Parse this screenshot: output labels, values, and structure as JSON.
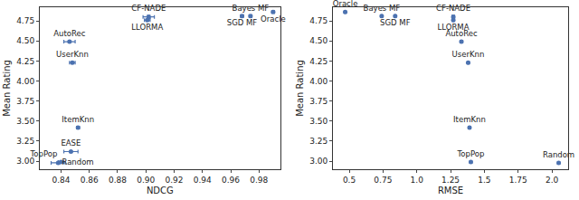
{
  "chart_data": [
    {
      "type": "scatter",
      "marker": "circle",
      "color": "#4c72b0",
      "grid": false,
      "x_label": "NDCG",
      "y_label": "Mean Rating",
      "labels": [
        "Random",
        "TopPop",
        "EASE",
        "ItemKnn",
        "UserKnn",
        "AutoRec",
        "CF-NADE",
        "LLORMA",
        "SGD MF",
        "Bayes MF",
        "Oracle"
      ],
      "x": [
        0.838,
        0.84,
        0.847,
        0.852,
        0.848,
        0.846,
        0.902,
        0.901,
        0.968,
        0.974,
        0.99
      ],
      "values": [
        2.98,
        2.99,
        3.12,
        3.42,
        4.23,
        4.49,
        4.8,
        4.76,
        4.81,
        4.81,
        4.86
      ],
      "x_error": [
        0.005,
        0.002,
        0.005,
        0.001,
        0.002,
        0.004,
        0.004,
        0.002,
        0.001,
        0.001,
        0.001
      ],
      "y_error": [
        0.01,
        0.01,
        0.01,
        0.01,
        0.01,
        0.01,
        0.02,
        0.01,
        0.01,
        0.01,
        0.01
      ],
      "xlim": [
        0.825,
        0.995
      ],
      "xticks": [
        0.84,
        0.86,
        0.88,
        {
          "value": 0.9,
          "label": "0.90"
        },
        0.92,
        0.94,
        0.96,
        0.98
      ],
      "ylim": [
        2.9,
        4.92
      ],
      "yticks": [
        {
          "value": 3,
          "label": "3.00"
        },
        {
          "value": 3.25,
          "label": "3.25"
        },
        {
          "value": 3.5,
          "label": "3.50"
        },
        {
          "value": 3.75,
          "label": "3.75"
        },
        {
          "value": 4,
          "label": "4.00"
        },
        {
          "value": 4.25,
          "label": "4.25"
        },
        {
          "value": 4.5,
          "label": "4.50"
        },
        {
          "value": 4.75,
          "label": "4.75"
        }
      ]
    },
    {
      "type": "scatter",
      "marker": "circle",
      "color": "#4c72b0",
      "grid": false,
      "x_label": "RMSE",
      "y_label": "Mean Rating",
      "labels": [
        "Oracle",
        "Bayes MF",
        "SGD MF",
        "CF-NADE",
        "LLORMA",
        "AutoRec",
        "UserKnn",
        "ItemKnn",
        "TopPop",
        "Random"
      ],
      "x": [
        0.47,
        0.74,
        0.84,
        1.27,
        1.27,
        1.33,
        1.38,
        1.39,
        1.4,
        2.05
      ],
      "values": [
        4.86,
        4.81,
        4.81,
        4.8,
        4.76,
        4.49,
        4.23,
        3.42,
        2.99,
        2.98
      ],
      "x_error": [
        0.005,
        0.005,
        0.005,
        0.01,
        0.005,
        0.01,
        0.005,
        0.005,
        0.005,
        0.005
      ],
      "y_error": [
        0.01,
        0.01,
        0.01,
        0.02,
        0.01,
        0.01,
        0.01,
        0.01,
        0.01,
        0.01
      ],
      "xlim": [
        0.38,
        2.12
      ],
      "xticks": [
        0.5,
        0.75,
        {
          "value": 1,
          "label": "1.0"
        },
        1.25,
        1.5,
        1.75,
        {
          "value": 2,
          "label": "2.0"
        }
      ],
      "ylim": [
        2.9,
        4.92
      ],
      "yticks": [
        {
          "value": 3,
          "label": "3.00"
        },
        {
          "value": 3.25,
          "label": "3.25"
        },
        {
          "value": 3.5,
          "label": "3.50"
        },
        {
          "value": 3.75,
          "label": "3.75"
        },
        {
          "value": 4,
          "label": "4.00"
        },
        {
          "value": 4.25,
          "label": "4.25"
        },
        {
          "value": 4.5,
          "label": "4.50"
        },
        {
          "value": 4.75,
          "label": "4.75"
        }
      ]
    }
  ]
}
